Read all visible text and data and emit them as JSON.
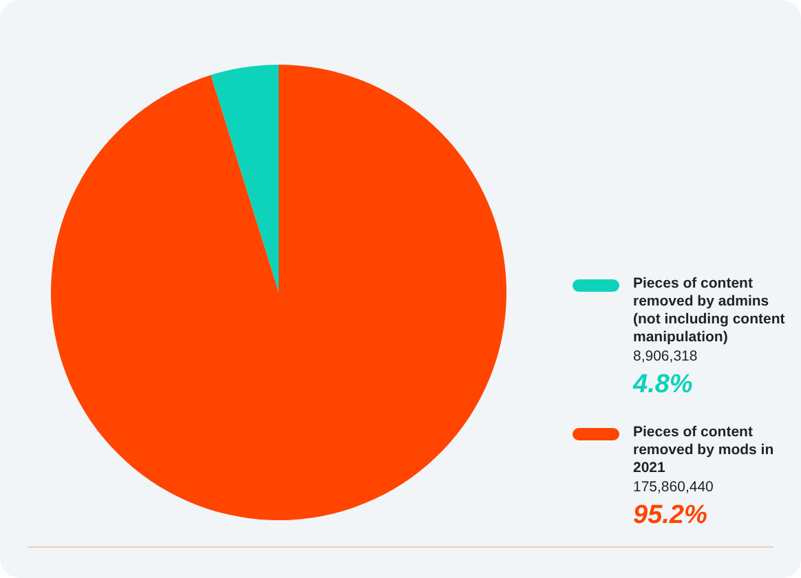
{
  "chart_data": {
    "type": "pie",
    "categories": [
      "Pieces of content removed by admins (not including content manipulation)",
      "Pieces of content removed by mods in 2021"
    ],
    "values": [
      8906318,
      175860440
    ],
    "colors": [
      "#0dd3bb",
      "#ff4500"
    ],
    "value_labels": [
      "8,906,318",
      "175,860,440"
    ],
    "annotations": [
      "4.8%",
      "95.2%"
    ],
    "legend": "right"
  }
}
